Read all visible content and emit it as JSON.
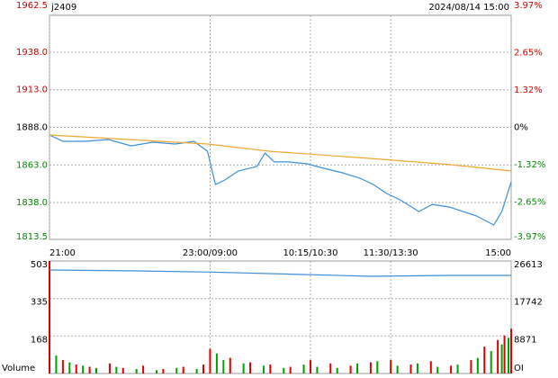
{
  "chart_data": [
    {
      "type": "line",
      "title": "j2409",
      "subtitle": "2024/08/14 15:00",
      "xlim": [
        0,
        345
      ],
      "xticks": [
        {
          "value": 0,
          "label": "21:00"
        },
        {
          "value": 120,
          "label": "23:00/09:00"
        },
        {
          "value": 195,
          "label": "10:15/10:30"
        },
        {
          "value": 255,
          "label": "11:30/13:30"
        },
        {
          "value": 345,
          "label": "15:00"
        }
      ],
      "ylim": [
        1813.5,
        1962.5
      ],
      "yticks": [
        1962.5,
        {
          "value": 1938,
          "label": "1938.0"
        },
        {
          "value": 1913,
          "label": "1913.0"
        },
        {
          "value": 1888,
          "label": "1888.0"
        },
        {
          "value": 1863,
          "label": "1863.0"
        },
        {
          "value": 1838,
          "label": "1838.0"
        },
        1813.5
      ],
      "y2lim": [
        -3.97,
        3.97
      ],
      "y2ticks": [
        {
          "value": 3.97,
          "label": "3.97%"
        },
        {
          "value": 2.65,
          "label": "2.65%"
        },
        {
          "value": 1.32,
          "label": "1.32%"
        },
        {
          "value": 0,
          "label": "0%"
        },
        {
          "value": -1.32,
          "label": "-1.32%"
        },
        {
          "value": -2.65,
          "label": "-2.65%"
        },
        {
          "value": -3.97,
          "label": "-3.97%"
        }
      ],
      "up_color": "#d00000",
      "down_color": "#008a00",
      "flat_color": "#000000",
      "grid": true,
      "series": [
        {
          "color": "#3b8fd8",
          "x": [
            0,
            10,
            27,
            44,
            61,
            77,
            94,
            108,
            118,
            124,
            131,
            141,
            155,
            161,
            168,
            178,
            192,
            205,
            219,
            232,
            242,
            252,
            262,
            276,
            286,
            299,
            309,
            319,
            332,
            338,
            345
          ],
          "values": [
            1882.9,
            1878.7,
            1878.7,
            1879.9,
            1875.7,
            1878.1,
            1876.9,
            1878.7,
            1872.1,
            1850.0,
            1853.0,
            1859.0,
            1862.0,
            1870.9,
            1865.0,
            1865.0,
            1863.8,
            1860.8,
            1857.8,
            1854.2,
            1850.0,
            1844.0,
            1839.8,
            1832.0,
            1836.8,
            1835.0,
            1832.0,
            1829.1,
            1823.1,
            1832.0,
            1851.8
          ]
        },
        {
          "color": "#f0a830",
          "x": [
            0,
            118,
            165,
            245,
            299,
            345
          ],
          "values": [
            1882.9,
            1876.9,
            1872.1,
            1867.0,
            1863.2,
            1859.0
          ]
        }
      ]
    },
    {
      "type": "bar",
      "xlim": [
        0,
        345
      ],
      "ylim": [
        0,
        503
      ],
      "yticks": [
        168,
        335,
        503
      ],
      "ylabel": "Volume",
      "y2lim": [
        0,
        26613
      ],
      "y2ticks": [
        8871,
        17742,
        26613
      ],
      "y2label": "OI",
      "series": [
        {
          "color": "#e00000",
          "x": [
            0,
            10,
            20,
            30,
            45,
            55,
            70,
            85,
            100,
            115,
            120,
            135,
            150,
            165,
            180,
            195,
            210,
            225,
            240,
            255,
            270,
            285,
            300,
            315,
            325,
            335,
            340,
            345
          ],
          "values": [
            503,
            60,
            40,
            30,
            45,
            25,
            35,
            20,
            30,
            40,
            110,
            70,
            50,
            40,
            30,
            60,
            45,
            35,
            50,
            60,
            40,
            55,
            35,
            60,
            120,
            150,
            170,
            200
          ]
        },
        {
          "color": "#00a000",
          "x": [
            5,
            15,
            25,
            35,
            50,
            65,
            80,
            95,
            110,
            125,
            130,
            145,
            160,
            175,
            190,
            200,
            215,
            230,
            245,
            260,
            275,
            290,
            305,
            320,
            330,
            338,
            343
          ],
          "values": [
            80,
            50,
            35,
            25,
            30,
            20,
            15,
            25,
            20,
            90,
            60,
            45,
            35,
            25,
            40,
            30,
            25,
            45,
            55,
            35,
            45,
            30,
            40,
            70,
            100,
            130,
            160
          ]
        },
        {
          "type": "line",
          "axis": "y2",
          "color": "#3b8fd8",
          "x": [
            0,
            60,
            120,
            180,
            240,
            300,
            345
          ],
          "values": [
            24484,
            24300,
            24000,
            23500,
            23000,
            23200,
            23206
          ]
        }
      ]
    }
  ]
}
